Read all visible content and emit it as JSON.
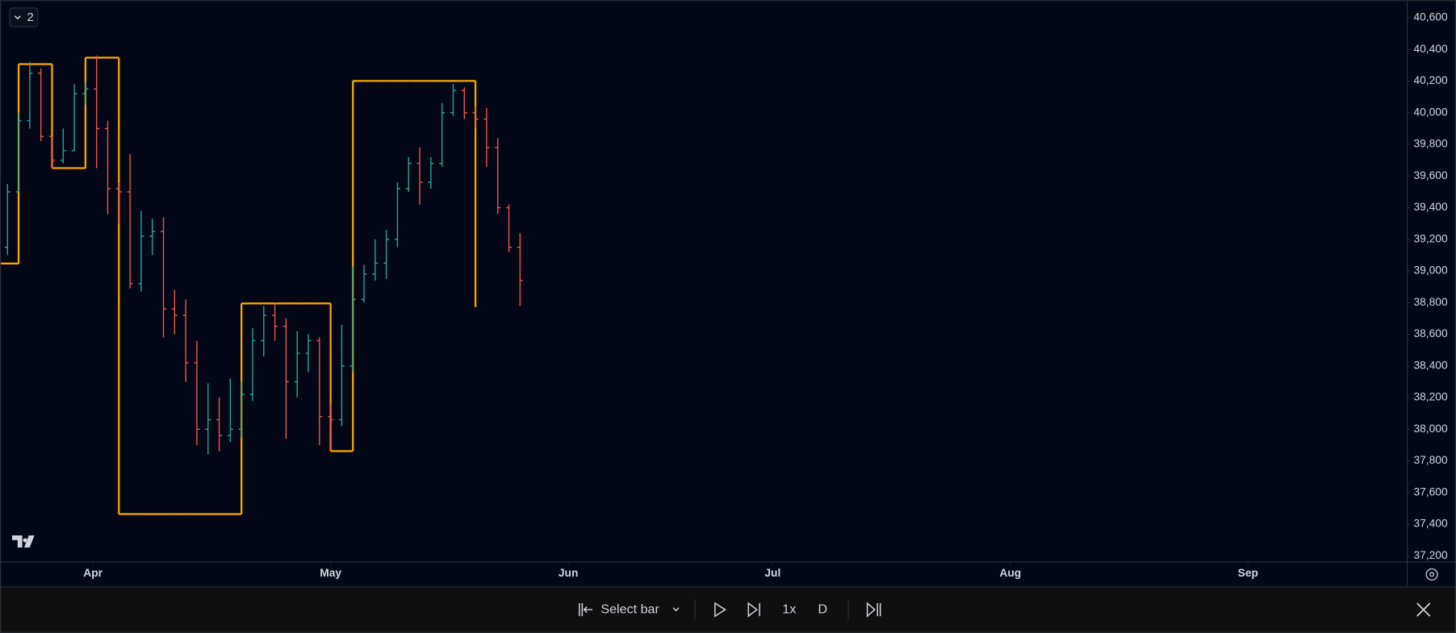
{
  "chart_data": {
    "type": "ohlc",
    "open": [
      39150,
      39500,
      39950,
      40250,
      39850,
      39700,
      39760,
      40120,
      40150,
      39900,
      39520,
      39500,
      38920,
      39220,
      39250,
      38760,
      38720,
      38420,
      38000,
      38060,
      37960,
      38000,
      38220,
      38560,
      38720,
      38650,
      38300,
      38480,
      38560,
      38080,
      38060,
      38400,
      38820,
      38980,
      39050,
      39200,
      39520,
      39680,
      39560,
      39680,
      40000,
      40140,
      40000,
      39960,
      39780,
      39400,
      39150
    ],
    "high": [
      39550,
      40000,
      40320,
      40280,
      39850,
      39900,
      40180,
      40200,
      40360,
      39950,
      39560,
      39740,
      39380,
      39330,
      39340,
      38880,
      38820,
      38560,
      38290,
      38200,
      38320,
      38300,
      38640,
      38780,
      38800,
      38700,
      38620,
      38600,
      38580,
      38160,
      38660,
      39030,
      39040,
      39200,
      39260,
      39560,
      39720,
      39780,
      39720,
      40060,
      40180,
      40160,
      40040,
      40030,
      39840,
      39420,
      39240
    ],
    "low": [
      39100,
      39500,
      39900,
      39820,
      39650,
      39680,
      39760,
      40050,
      39650,
      39360,
      39300,
      38890,
      38870,
      39100,
      38580,
      38600,
      38300,
      37900,
      37840,
      37860,
      37920,
      37950,
      38180,
      38460,
      38560,
      37940,
      38200,
      38360,
      37900,
      37870,
      38020,
      38360,
      38800,
      38940,
      38950,
      39150,
      39500,
      39420,
      39520,
      39660,
      39980,
      39960,
      39900,
      39660,
      39360,
      39120,
      38780
    ],
    "close": [
      39500,
      39950,
      40250,
      39850,
      39700,
      39760,
      40120,
      40150,
      39900,
      39520,
      39500,
      38920,
      39220,
      39250,
      38760,
      38720,
      38420,
      38000,
      38060,
      37960,
      38000,
      38220,
      38560,
      38720,
      38650,
      38300,
      38480,
      38560,
      38080,
      38060,
      38400,
      38820,
      38980,
      39050,
      39200,
      39520,
      39680,
      39560,
      39680,
      40000,
      40140,
      40000,
      39960,
      39780,
      39400,
      39150,
      38940
    ],
    "up_color": "#26a69a",
    "down_color": "#ef5350",
    "step_line": {
      "color": "#f7a600",
      "values": [
        39047,
        40307,
        40307,
        40307,
        39650,
        39650,
        39650,
        40348,
        40348,
        40348,
        37464,
        37464,
        37464,
        37464,
        37464,
        37464,
        37464,
        37464,
        37464,
        37464,
        37464,
        38795,
        38795,
        38795,
        38795,
        38795,
        38795,
        38795,
        38795,
        37862,
        37862,
        40201,
        40201,
        40201,
        40201,
        40201,
        40201,
        40201,
        40201,
        40201,
        40201,
        40201,
        38777,
        null,
        null,
        null,
        null
      ]
    },
    "xlim": [
      -0.67,
      125.58
    ],
    "xticks": [
      {
        "value": 7.67,
        "label": "Apr"
      },
      {
        "value": 29,
        "label": "May"
      },
      {
        "value": 50.33,
        "label": "Jun"
      },
      {
        "value": 68.67,
        "label": "Jul"
      },
      {
        "value": 90,
        "label": "Aug"
      },
      {
        "value": 111.33,
        "label": "Sep"
      }
    ],
    "ylim": [
      37200,
      40600
    ],
    "yticks": [
      {
        "value": 37200,
        "label": "37,200"
      },
      {
        "value": 37400,
        "label": "37,400"
      },
      {
        "value": 37600,
        "label": "37,600"
      },
      {
        "value": 37800,
        "label": "37,800"
      },
      {
        "value": 38000,
        "label": "38,000"
      },
      {
        "value": 38200,
        "label": "38,200"
      },
      {
        "value": 38400,
        "label": "38,400"
      },
      {
        "value": 38600,
        "label": "38,600"
      },
      {
        "value": 38800,
        "label": "38,800"
      },
      {
        "value": 39000,
        "label": "39,000"
      },
      {
        "value": 39200,
        "label": "39,200"
      },
      {
        "value": 39400,
        "label": "39,400"
      },
      {
        "value": 39600,
        "label": "39,600"
      },
      {
        "value": 39800,
        "label": "39,800"
      },
      {
        "value": 40000,
        "label": "40,000"
      },
      {
        "value": 40200,
        "label": "40,200"
      },
      {
        "value": 40400,
        "label": "40,400"
      },
      {
        "value": 40600,
        "label": "40,600"
      }
    ],
    "grid": false
  },
  "ui": {
    "indicator_count": "2",
    "select_bar": "Select bar",
    "speed": "1x",
    "interval": "D"
  }
}
